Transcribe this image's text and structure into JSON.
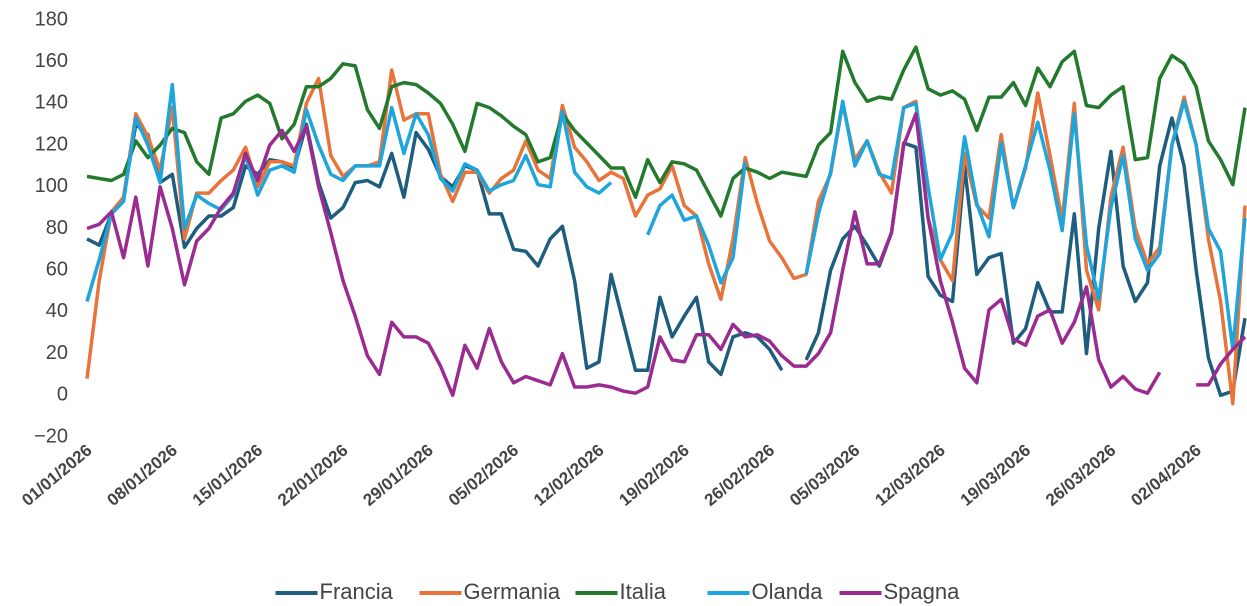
{
  "chart_data": {
    "type": "line",
    "categories": [
      "01/01/2026",
      null,
      null,
      null,
      null,
      null,
      null,
      "08/01/2026",
      null,
      null,
      null,
      null,
      null,
      null,
      "15/01/2026",
      null,
      null,
      null,
      null,
      null,
      null,
      "22/01/2026",
      null,
      null,
      null,
      null,
      null,
      null,
      "29/01/2026",
      null,
      null,
      null,
      null,
      null,
      null,
      "05/02/2026",
      null,
      null,
      null,
      null,
      null,
      null,
      "12/02/2026",
      null,
      null,
      null,
      null,
      null,
      null,
      "19/02/2026",
      null,
      null,
      null,
      null,
      null,
      null,
      "26/02/2026",
      null,
      null,
      null,
      null,
      null,
      null,
      "05/03/2026",
      null,
      null,
      null,
      null,
      null,
      null,
      "12/03/2026",
      null,
      null,
      null,
      null,
      null,
      null,
      "19/03/2026",
      null,
      null,
      null,
      null,
      null,
      null,
      "26/03/2026",
      null,
      null,
      null,
      null,
      null,
      null,
      "02/04/2026",
      null,
      null,
      null,
      null
    ],
    "series": [
      {
        "name": "Francia",
        "color": "#1d5d7e",
        "values": [
          75,
          72,
          87,
          95,
          130,
          125,
          102,
          106,
          71,
          80,
          86,
          86,
          90,
          110,
          106,
          113,
          112,
          109,
          130,
          102,
          85,
          90,
          102,
          103,
          100,
          116,
          95,
          126,
          118,
          105,
          100,
          110,
          108,
          87,
          87,
          70,
          69,
          62,
          75,
          81,
          55,
          13,
          16,
          58,
          35,
          12,
          12,
          47,
          28,
          38,
          47,
          16,
          10,
          28,
          30,
          28,
          22,
          12,
          null,
          17,
          30,
          60,
          75,
          81,
          72,
          62,
          78,
          121,
          119,
          57,
          48,
          45,
          110,
          58,
          66,
          68,
          25,
          32,
          54,
          40,
          40,
          87,
          20,
          80,
          117,
          62,
          45,
          54,
          110,
          133,
          110,
          60,
          18,
          0,
          2,
          37
        ]
      },
      {
        "name": "Germania",
        "color": "#e8743b",
        "values": [
          8,
          55,
          88,
          95,
          135,
          124,
          108,
          138,
          75,
          97,
          97,
          103,
          108,
          119,
          100,
          112,
          112,
          110,
          140,
          152,
          115,
          105,
          110,
          110,
          112,
          156,
          132,
          135,
          135,
          106,
          93,
          107,
          107,
          97,
          104,
          108,
          122,
          108,
          104,
          139,
          119,
          112,
          103,
          107,
          104,
          86,
          96,
          99,
          110,
          91,
          86,
          63,
          46,
          75,
          114,
          92,
          74,
          66,
          56,
          58,
          93,
          106,
          140,
          113,
          122,
          107,
          97,
          138,
          141,
          85,
          65,
          55,
          116,
          91,
          85,
          125,
          90,
          109,
          145,
          115,
          84,
          140,
          60,
          41,
          95,
          119,
          80,
          63,
          71,
          120,
          143,
          120,
          75,
          45,
          -4,
          91
        ]
      },
      {
        "name": "Italia",
        "color": "#237a2d",
        "values": [
          105,
          104,
          103,
          106,
          122,
          114,
          120,
          128,
          126,
          112,
          106,
          133,
          135,
          141,
          144,
          140,
          123,
          130,
          148,
          148,
          152,
          159,
          158,
          137,
          128,
          148,
          150,
          149,
          145,
          140,
          130,
          117,
          140,
          138,
          134,
          129,
          125,
          112,
          114,
          135,
          127,
          121,
          115,
          109,
          109,
          95,
          113,
          102,
          112,
          111,
          108,
          97,
          86,
          104,
          109,
          107,
          104,
          107,
          106,
          105,
          120,
          126,
          165,
          150,
          141,
          143,
          142,
          156,
          167,
          147,
          144,
          146,
          142,
          127,
          143,
          143,
          150,
          139,
          157,
          148,
          160,
          165,
          139,
          138,
          144,
          148,
          113,
          114,
          152,
          163,
          159,
          148,
          122,
          113,
          101,
          138
        ]
      },
      {
        "name": "Olanda",
        "color": "#1ea5dc",
        "values": [
          45,
          65,
          87,
          93,
          133,
          120,
          102,
          149,
          80,
          96,
          92,
          89,
          96,
          115,
          96,
          108,
          110,
          107,
          137,
          120,
          106,
          103,
          110,
          110,
          110,
          138,
          116,
          135,
          125,
          104,
          98,
          111,
          108,
          98,
          101,
          103,
          115,
          101,
          100,
          136,
          107,
          100,
          97,
          102,
          null,
          null,
          77,
          91,
          96,
          84,
          86,
          72,
          54,
          66,
          112,
          null,
          null,
          null,
          null,
          58,
          87,
          107,
          141,
          110,
          122,
          106,
          104,
          138,
          140,
          100,
          65,
          78,
          124,
          92,
          76,
          121,
          90,
          110,
          131,
          108,
          79,
          135,
          72,
          46,
          90,
          115,
          75,
          60,
          68,
          120,
          141,
          120,
          80,
          69,
          22,
          85
        ]
      },
      {
        "name": "Spagna",
        "color": "#9c2b91",
        "values": [
          80,
          82,
          88,
          66,
          95,
          62,
          100,
          80,
          53,
          74,
          80,
          90,
          97,
          116,
          103,
          120,
          127,
          117,
          129,
          100,
          78,
          55,
          38,
          19,
          10,
          35,
          28,
          28,
          25,
          14,
          0,
          24,
          13,
          32,
          16,
          6,
          9,
          7,
          5,
          20,
          4,
          4,
          5,
          4,
          2,
          1,
          4,
          28,
          17,
          16,
          29,
          29,
          22,
          34,
          28,
          29,
          26,
          19,
          14,
          14,
          20,
          30,
          60,
          88,
          63,
          63,
          78,
          120,
          135,
          85,
          55,
          35,
          13,
          6,
          41,
          46,
          27,
          24,
          38,
          41,
          25,
          35,
          52,
          17,
          4,
          9,
          3,
          1,
          11,
          null,
          null,
          5,
          5,
          15,
          22,
          28
        ]
      }
    ],
    "ylim": [
      -20,
      180
    ],
    "yticks": [
      {
        "value": -20,
        "label": "−20"
      },
      0,
      20,
      40,
      60,
      80,
      100,
      120,
      140,
      160,
      180
    ],
    "legend": "bottom"
  }
}
